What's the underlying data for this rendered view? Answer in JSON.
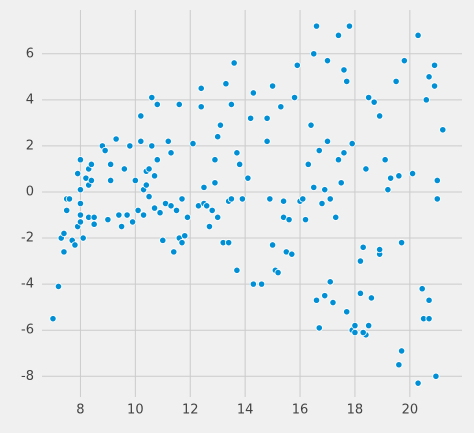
{
  "chart_data": {
    "type": "scatter",
    "color": "#008fd5",
    "grid": true,
    "xlim": [
      6.6,
      21.9
    ],
    "ylim": [
      -8.9,
      7.9
    ],
    "xticks": [
      8,
      10,
      12,
      14,
      16,
      18,
      20
    ],
    "yticks": [
      -8,
      -6,
      -4,
      -2,
      0,
      2,
      4,
      6
    ],
    "x": [
      7.0,
      7.2,
      7.3,
      7.4,
      7.4,
      7.5,
      7.5,
      7.6,
      7.7,
      7.8,
      7.9,
      7.9,
      8.0,
      8.0,
      8.0,
      8.0,
      8.0,
      8.1,
      8.2,
      8.3,
      8.3,
      8.3,
      8.4,
      8.4,
      8.5,
      8.5,
      8.8,
      8.9,
      9.0,
      9.1,
      9.1,
      9.3,
      9.4,
      9.5,
      9.6,
      9.7,
      9.8,
      9.9,
      10.0,
      10.1,
      10.2,
      10.2,
      10.3,
      10.3,
      10.4,
      10.4,
      10.5,
      10.5,
      10.6,
      10.6,
      10.7,
      10.7,
      10.8,
      10.8,
      10.9,
      11.0,
      11.1,
      11.2,
      11.3,
      11.3,
      11.4,
      11.5,
      11.6,
      11.6,
      11.7,
      11.7,
      11.8,
      11.9,
      12.1,
      12.3,
      12.4,
      12.4,
      12.5,
      12.5,
      12.6,
      12.7,
      12.8,
      12.9,
      12.9,
      13.0,
      13.0,
      13.1,
      13.2,
      13.3,
      13.4,
      13.4,
      13.5,
      13.5,
      13.6,
      13.7,
      13.7,
      13.8,
      13.9,
      14.1,
      14.2,
      14.3,
      14.3,
      14.6,
      14.8,
      14.8,
      14.9,
      15.0,
      15.0,
      15.1,
      15.2,
      15.3,
      15.4,
      15.4,
      15.5,
      15.6,
      15.7,
      15.8,
      15.9,
      16.0,
      16.1,
      16.2,
      16.3,
      16.4,
      16.5,
      16.5,
      16.6,
      16.6,
      16.7,
      16.7,
      16.8,
      16.9,
      16.9,
      17.0,
      17.0,
      17.1,
      17.1,
      17.2,
      17.3,
      17.4,
      17.4,
      17.5,
      17.6,
      17.6,
      17.7,
      17.7,
      17.8,
      17.9,
      17.9,
      18.0,
      18.0,
      18.2,
      18.2,
      18.3,
      18.4,
      18.5,
      18.6,
      18.4,
      18.7,
      18.5,
      18.9,
      18.9,
      18.3,
      18.9,
      19.1,
      19.2,
      19.3,
      19.5,
      19.6,
      19.7,
      19.6,
      19.7,
      19.8,
      20.1,
      20.3,
      20.3,
      20.45,
      20.5,
      20.6,
      20.7,
      20.7,
      20.7,
      20.9,
      20.9,
      20.95,
      21.0,
      21.0,
      21.2
    ],
    "y": [
      -5.5,
      -4.1,
      -2.0,
      -1.8,
      -2.6,
      -0.8,
      -0.3,
      -0.3,
      -2.1,
      -2.3,
      -1.5,
      0.8,
      1.4,
      0.1,
      -1.0,
      -0.5,
      -1.3,
      -2.0,
      0.6,
      1.0,
      0.3,
      -1.1,
      1.2,
      0.5,
      -1.4,
      -1.1,
      2.0,
      1.8,
      -1.2,
      0.5,
      1.2,
      2.3,
      -1.0,
      -1.5,
      1.0,
      -1.0,
      2.0,
      -1.3,
      0.5,
      -0.8,
      2.2,
      3.3,
      -1.0,
      0.1,
      0.9,
      0.3,
      -0.2,
      1.0,
      4.1,
      2.0,
      0.7,
      -0.7,
      3.8,
      1.4,
      -0.9,
      -2.1,
      -0.5,
      2.2,
      1.7,
      -0.6,
      -2.6,
      -0.8,
      3.8,
      -2.0,
      -2.2,
      -0.3,
      -1.9,
      -1.1,
      2.1,
      -0.6,
      4.5,
      3.7,
      -0.5,
      0.2,
      -0.6,
      -1.5,
      -0.8,
      1.4,
      0.4,
      2.4,
      -1.1,
      2.9,
      -2.2,
      4.7,
      -2.2,
      -0.4,
      3.8,
      -0.3,
      5.6,
      1.7,
      -3.4,
      1.2,
      -0.3,
      0.6,
      3.2,
      4.3,
      -4.0,
      -4.0,
      2.2,
      3.2,
      -0.3,
      4.6,
      -2.3,
      -3.4,
      -3.5,
      3.7,
      -1.1,
      -0.4,
      -2.6,
      -1.2,
      -2.7,
      4.1,
      5.5,
      -0.4,
      -0.3,
      -1.2,
      1.2,
      2.9,
      6.0,
      0.2,
      7.2,
      -4.7,
      1.8,
      -5.9,
      -0.5,
      0.1,
      -4.5,
      5.7,
      2.2,
      -0.3,
      -3.9,
      -4.8,
      -1.1,
      6.8,
      1.4,
      0.4,
      5.3,
      1.7,
      4.8,
      -5.2,
      7.2,
      2.1,
      -6.0,
      -5.8,
      -6.1,
      -4.4,
      -3.0,
      -2.4,
      1.0,
      4.1,
      -4.6,
      -6.2,
      3.9,
      -5.8,
      -2.7,
      -2.5,
      -6.1,
      3.3,
      1.4,
      0.1,
      0.6,
      4.8,
      0.7,
      -2.2,
      -7.5,
      -6.9,
      5.7,
      0.8,
      6.8,
      -8.3,
      -4.2,
      -5.5,
      4.0,
      5.0,
      -5.5,
      -4.7,
      5.5,
      4.6,
      -8.0,
      0.5,
      -0.3,
      2.7
    ]
  }
}
